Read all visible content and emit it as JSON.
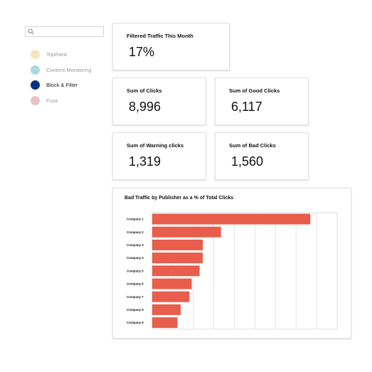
{
  "search": {
    "placeholder": "",
    "value": ""
  },
  "sidebar": {
    "items": [
      {
        "label": "TopRank",
        "color": "#F8E3BF"
      },
      {
        "label": "Content Monitoring",
        "color": "#A9D8DE"
      },
      {
        "label": "Block & Filter",
        "color": "#0B3187",
        "active": true
      },
      {
        "label": "Fuse",
        "color": "#E8C4C1"
      }
    ]
  },
  "cards": {
    "filtered_traffic": {
      "title": "Filtered Traffic This Month",
      "value": "17%"
    },
    "sum_clicks": {
      "title": "Sum of Clicks",
      "value": "8,996"
    },
    "sum_good_clicks": {
      "title": "Sum of Good Clicks",
      "value": "6,117"
    },
    "sum_warning_clicks": {
      "title": "Sum of Warning clicks",
      "value": "1,319"
    },
    "sum_bad_clicks": {
      "title": "Sum of Bad Clicks",
      "value": "1,560"
    }
  },
  "chart_data": {
    "type": "bar",
    "orientation": "horizontal",
    "title": "Bad Traffic by Publisher as a % of Total Clicks",
    "xlabel": "",
    "ylabel": "",
    "categories": [
      "Company 1",
      "Company 2",
      "Company 3",
      "Company 4",
      "Company 5",
      "Company 6",
      "Company 7",
      "Company 8",
      "Company 9"
    ],
    "values": [
      100,
      43.5,
      32,
      32,
      30,
      25,
      23.5,
      18,
      16
    ],
    "xlim": [
      0,
      117
    ],
    "grid": true,
    "legend": "none",
    "bar_color": "#E85D4B",
    "grid_color": "#DCDCDC"
  }
}
